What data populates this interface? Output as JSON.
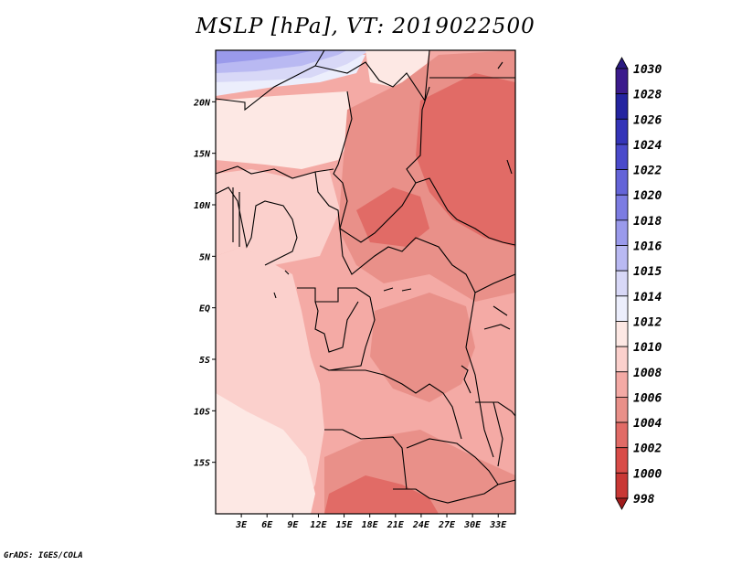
{
  "title": "MSLP [hPa], VT: 2019022500",
  "footer": "GrADS: IGES/COLA",
  "map": {
    "lat_labels": [
      "20N",
      "15N",
      "10N",
      "5N",
      "EQ",
      "5S",
      "10S",
      "15S"
    ],
    "lat_values": [
      20,
      15,
      10,
      5,
      0,
      -5,
      -10,
      -15
    ],
    "lon_labels": [
      "3E",
      "6E",
      "9E",
      "12E",
      "15E",
      "18E",
      "21E",
      "24E",
      "27E",
      "30E",
      "33E"
    ],
    "lon_values": [
      3,
      6,
      9,
      12,
      15,
      18,
      21,
      24,
      27,
      30,
      33
    ],
    "lon_range": [
      0,
      35
    ],
    "lat_range": [
      -20,
      25
    ]
  },
  "colorbar": {
    "levels": [
      {
        "label": "1030",
        "color": "#3b1b8c"
      },
      {
        "label": "1028",
        "color": "#2424a0"
      },
      {
        "label": "1026",
        "color": "#3434b8"
      },
      {
        "label": "1024",
        "color": "#4a4acb"
      },
      {
        "label": "1022",
        "color": "#6464d8"
      },
      {
        "label": "1020",
        "color": "#7c7ce2"
      },
      {
        "label": "1018",
        "color": "#9a9aeb"
      },
      {
        "label": "1016",
        "color": "#b9b9f2"
      },
      {
        "label": "1015",
        "color": "#d8d8f7"
      },
      {
        "label": "1014",
        "color": "#eceefc"
      },
      {
        "label": "1012",
        "color": "#fde8e4"
      },
      {
        "label": "1010",
        "color": "#fbd0cc"
      },
      {
        "label": "1008",
        "color": "#f4aaa5"
      },
      {
        "label": "1006",
        "color": "#e99089"
      },
      {
        "label": "1004",
        "color": "#e16b66"
      },
      {
        "label": "1002",
        "color": "#d94c48"
      },
      {
        "label": "1000",
        "color": "#c93835"
      },
      {
        "label": "998",
        "color": "#b22424"
      }
    ],
    "top_color": "#2a1a80",
    "bottom_color": "#a01c1c"
  },
  "fields": {
    "colors": {
      "f1004": "#e16b66",
      "f1006": "#e99089",
      "f1008": "#f4aaa5",
      "f1010": "#fbd0cc",
      "f1012": "#fde8e4",
      "f1014": "#eceefc",
      "f1016": "#d8d8f7",
      "f1018": "#b9b9f2",
      "f1020": "#9a9aeb",
      "f1022": "#7c7ce2"
    }
  }
}
